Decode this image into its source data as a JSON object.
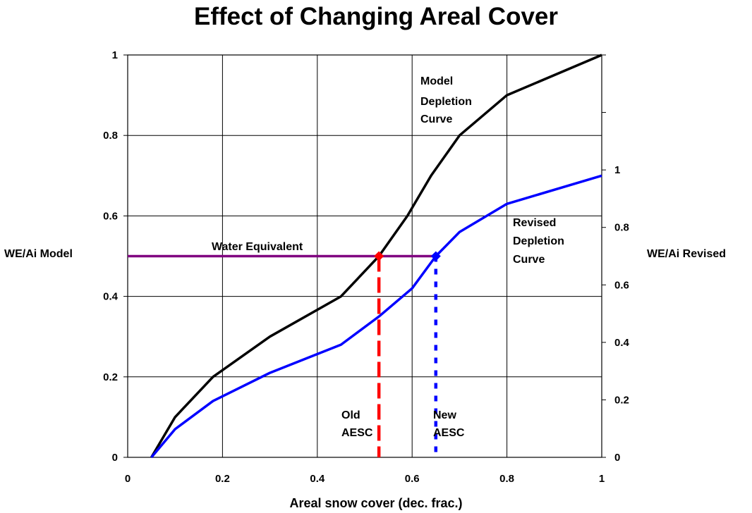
{
  "chart_data": {
    "type": "line",
    "title": "Effect of Changing Areal Cover",
    "xlabel": "Areal snow cover (dec. frac.)",
    "ylabel_left": "WE/Ai Model",
    "ylabel_right": "WE/Ai Revised",
    "xlim": [
      0,
      1
    ],
    "ylim_left": [
      0,
      1
    ],
    "ylim_right": [
      0,
      1.4
    ],
    "x_ticks": [
      "0",
      "0.2",
      "0.4",
      "0.6",
      "0.8",
      "1"
    ],
    "y_ticks_left": [
      "0",
      "0.2",
      "0.4",
      "0.6",
      "0.8",
      "1"
    ],
    "y_ticks_right": [
      "0",
      "0.2",
      "0.4",
      "0.6",
      "0.8",
      "1"
    ],
    "grid": true,
    "series": [
      {
        "name": "Model Depletion Curve",
        "color": "#000000",
        "x": [
          0.05,
          0.1,
          0.18,
          0.3,
          0.45,
          0.53,
          0.59,
          0.64,
          0.7,
          0.8,
          1.0
        ],
        "y": [
          0.0,
          0.1,
          0.2,
          0.3,
          0.4,
          0.5,
          0.6,
          0.7,
          0.8,
          0.9,
          1.0
        ]
      },
      {
        "name": "Revised Depletion Curve",
        "color": "#0000ff",
        "x": [
          0.05,
          0.1,
          0.18,
          0.3,
          0.45,
          0.53,
          0.6,
          0.65,
          0.7,
          0.8,
          1.0
        ],
        "y": [
          0.0,
          0.07,
          0.14,
          0.21,
          0.28,
          0.35,
          0.42,
          0.5,
          0.56,
          0.63,
          0.7
        ]
      },
      {
        "name": "Water Equivalent",
        "color": "#800080",
        "x": [
          0.0,
          0.65
        ],
        "y": [
          0.5,
          0.5
        ]
      }
    ],
    "vertical_markers": [
      {
        "name": "Old AESC",
        "x": 0.53,
        "y": 0.5,
        "color": "#ff0000"
      },
      {
        "name": "New AESC",
        "x": 0.65,
        "y": 0.5,
        "color": "#0000ff"
      }
    ],
    "annotations": [
      {
        "text": "Model",
        "target": "model"
      },
      {
        "text": "Depletion",
        "target": "model"
      },
      {
        "text": "Curve",
        "target": "model"
      },
      {
        "text": "Revised",
        "target": "revised"
      },
      {
        "text": "Depletion",
        "target": "revised"
      },
      {
        "text": "Curve",
        "target": "revised"
      },
      {
        "text": "Water Equivalent",
        "target": "we"
      },
      {
        "text": "Old",
        "target": "old"
      },
      {
        "text": "AESC",
        "target": "old"
      },
      {
        "text": "New",
        "target": "new"
      },
      {
        "text": "AESC",
        "target": "new"
      }
    ]
  }
}
